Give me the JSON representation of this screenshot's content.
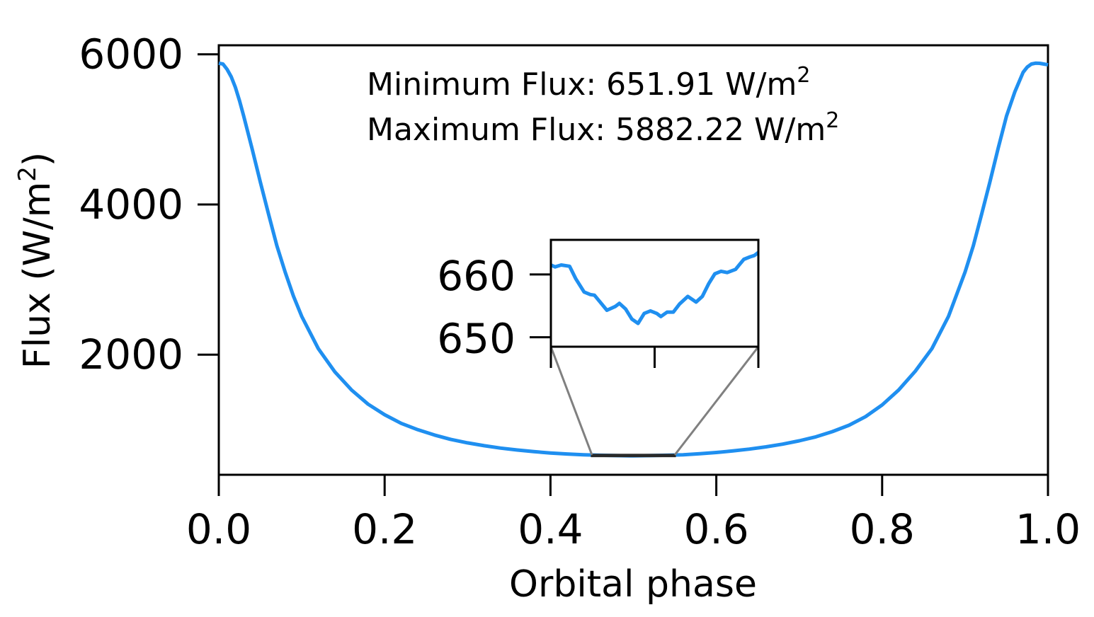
{
  "chart_data": {
    "type": "line",
    "xlabel": "Orbital phase",
    "ylabel": "Flux (W/m",
    "ylabel_sup": "2",
    "ylabel_close": ")",
    "xlim": [
      0.0,
      1.0
    ],
    "ylim": [
      400,
      6120
    ],
    "xticks": [
      0.0,
      0.2,
      0.4,
      0.6,
      0.8,
      1.0
    ],
    "xtick_labels": [
      "0.0",
      "0.2",
      "0.4",
      "0.6",
      "0.8",
      "1.0"
    ],
    "yticks": [
      2000,
      4000,
      6000
    ],
    "ytick_labels": [
      "2000",
      "4000",
      "6000"
    ],
    "grid": false,
    "line_color": "#1f8ff0",
    "annotations": [
      {
        "prefix": "Minimum Flux: 651.91 W/m",
        "sup": "2"
      },
      {
        "prefix": "Maximum Flux: 5882.22 W/m",
        "sup": "2"
      }
    ],
    "series": [
      {
        "x": [
          0.0,
          0.005,
          0.01,
          0.015,
          0.02,
          0.025,
          0.03,
          0.04,
          0.05,
          0.06,
          0.07,
          0.08,
          0.09,
          0.1,
          0.12,
          0.14,
          0.16,
          0.18,
          0.2,
          0.22,
          0.24,
          0.26,
          0.28,
          0.3,
          0.32,
          0.34,
          0.36,
          0.38,
          0.4,
          0.42,
          0.44,
          0.46,
          0.48,
          0.5,
          0.52,
          0.54,
          0.56,
          0.58,
          0.6,
          0.62,
          0.64,
          0.66,
          0.68,
          0.7,
          0.72,
          0.74,
          0.76,
          0.78,
          0.8,
          0.82,
          0.84,
          0.86,
          0.88,
          0.9,
          0.91,
          0.92,
          0.93,
          0.94,
          0.95,
          0.96,
          0.97,
          0.975,
          0.98,
          0.985,
          0.99,
          0.995,
          1.0
        ],
        "y": [
          5882,
          5870,
          5800,
          5700,
          5560,
          5380,
          5180,
          4750,
          4300,
          3870,
          3450,
          3100,
          2780,
          2510,
          2080,
          1770,
          1530,
          1340,
          1200,
          1085,
          1000,
          930,
          870,
          825,
          787,
          755,
          730,
          708,
          690,
          677,
          667,
          660,
          655,
          652,
          655,
          660,
          667,
          680,
          697,
          718,
          742,
          772,
          808,
          852,
          905,
          975,
          1060,
          1175,
          1330,
          1530,
          1780,
          2080,
          2510,
          3100,
          3450,
          3870,
          4300,
          4750,
          5180,
          5500,
          5760,
          5830,
          5870,
          5882,
          5880,
          5870,
          5860
        ]
      }
    ],
    "inset": {
      "xlim": [
        0.45,
        0.55
      ],
      "ylim": [
        648.5,
        665.5
      ],
      "yticks": [
        650,
        660
      ],
      "ytick_labels": [
        "650",
        "660"
      ],
      "xticks": [
        0.45,
        0.5,
        0.55
      ],
      "x": [
        0.45,
        0.452,
        0.455,
        0.459,
        0.462,
        0.466,
        0.469,
        0.471,
        0.474,
        0.477,
        0.481,
        0.483,
        0.486,
        0.489,
        0.492,
        0.495,
        0.498,
        0.501,
        0.503,
        0.506,
        0.509,
        0.512,
        0.516,
        0.52,
        0.523,
        0.526,
        0.529,
        0.532,
        0.535,
        0.539,
        0.541,
        0.543,
        0.546,
        0.548,
        0.55
      ],
      "y": [
        661.5,
        661.2,
        661.5,
        661.3,
        659.3,
        657.2,
        656.8,
        656.7,
        655.5,
        654.3,
        654.9,
        655.4,
        654.5,
        652.9,
        652.2,
        653.8,
        654.2,
        653.8,
        653.3,
        654.0,
        654.0,
        655.3,
        656.5,
        655.6,
        656.5,
        658.5,
        660.1,
        660.5,
        660.3,
        660.8,
        661.6,
        662.4,
        662.8,
        663.0,
        663.5
      ]
    }
  }
}
